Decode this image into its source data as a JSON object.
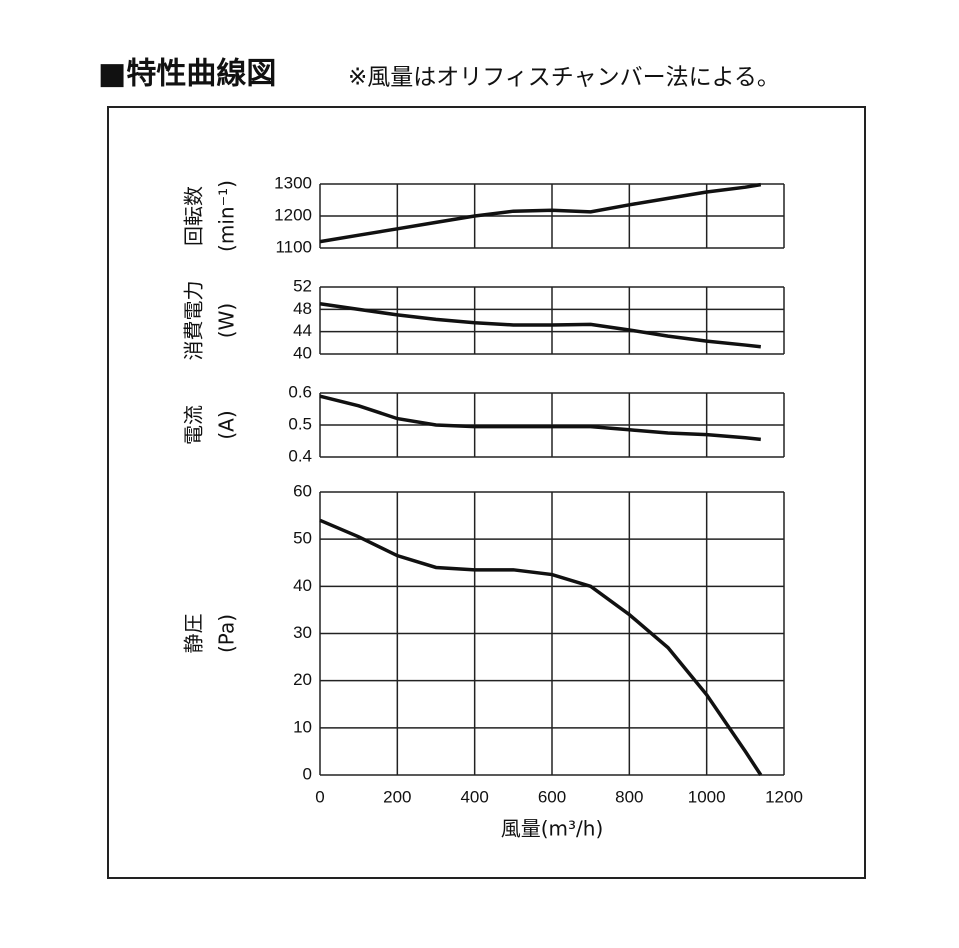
{
  "title": "■特性曲線図",
  "note": "※風量はオリフィスチャンバー法による。",
  "chart_data": [
    {
      "type": "line",
      "ylabel": [
        "回転数",
        "(min⁻¹)"
      ],
      "x": [
        0,
        100,
        200,
        300,
        400,
        500,
        600,
        700,
        800,
        900,
        1000,
        1100,
        1140
      ],
      "values": [
        1120,
        1140,
        1160,
        1180,
        1200,
        1215,
        1218,
        1213,
        1235,
        1255,
        1275,
        1290,
        1298
      ],
      "xlim": [
        0,
        1200
      ],
      "xticks": [
        0,
        200,
        400,
        600,
        800,
        1000,
        1200
      ],
      "ylim": [
        1100,
        1300
      ],
      "yticks": [
        1100,
        1200,
        1300
      ],
      "grid": true,
      "color": "#111111"
    },
    {
      "type": "line",
      "ylabel": [
        "消費電力",
        "(W)"
      ],
      "x": [
        0,
        100,
        200,
        300,
        400,
        500,
        600,
        700,
        800,
        900,
        1000,
        1100,
        1140
      ],
      "values": [
        49,
        48,
        47,
        46.2,
        45.6,
        45.2,
        45.2,
        45.3,
        44.3,
        43.2,
        42.3,
        41.6,
        41.3
      ],
      "xlim": [
        0,
        1200
      ],
      "xticks": [
        0,
        200,
        400,
        600,
        800,
        1000,
        1200
      ],
      "ylim": [
        40,
        52
      ],
      "yticks": [
        40,
        44,
        48,
        52
      ],
      "grid": true,
      "color": "#111111"
    },
    {
      "type": "line",
      "ylabel": [
        "電流",
        "(A)"
      ],
      "x": [
        0,
        100,
        200,
        300,
        400,
        500,
        600,
        700,
        800,
        900,
        1000,
        1100,
        1140
      ],
      "values": [
        0.59,
        0.56,
        0.52,
        0.5,
        0.495,
        0.495,
        0.495,
        0.495,
        0.485,
        0.475,
        0.47,
        0.46,
        0.455
      ],
      "xlim": [
        0,
        1200
      ],
      "xticks": [
        0,
        200,
        400,
        600,
        800,
        1000,
        1200
      ],
      "ylim": [
        0.4,
        0.6
      ],
      "yticks": [
        0.4,
        0.5,
        0.6
      ],
      "grid": true,
      "color": "#111111"
    },
    {
      "type": "line",
      "ylabel": [
        "静圧",
        "(Pa)"
      ],
      "xlabel": "風量(m³/h)",
      "x": [
        0,
        100,
        200,
        300,
        400,
        500,
        600,
        700,
        800,
        900,
        1000,
        1100,
        1140
      ],
      "values": [
        54,
        50.5,
        46.5,
        44,
        43.5,
        43.5,
        42.5,
        40,
        34,
        27,
        17,
        5,
        0
      ],
      "xlim": [
        0,
        1200
      ],
      "xticks": [
        0,
        200,
        400,
        600,
        800,
        1000,
        1200
      ],
      "ylim": [
        0,
        60
      ],
      "yticks": [
        0,
        10,
        20,
        30,
        40,
        50,
        60
      ],
      "grid": true,
      "color": "#111111"
    }
  ]
}
